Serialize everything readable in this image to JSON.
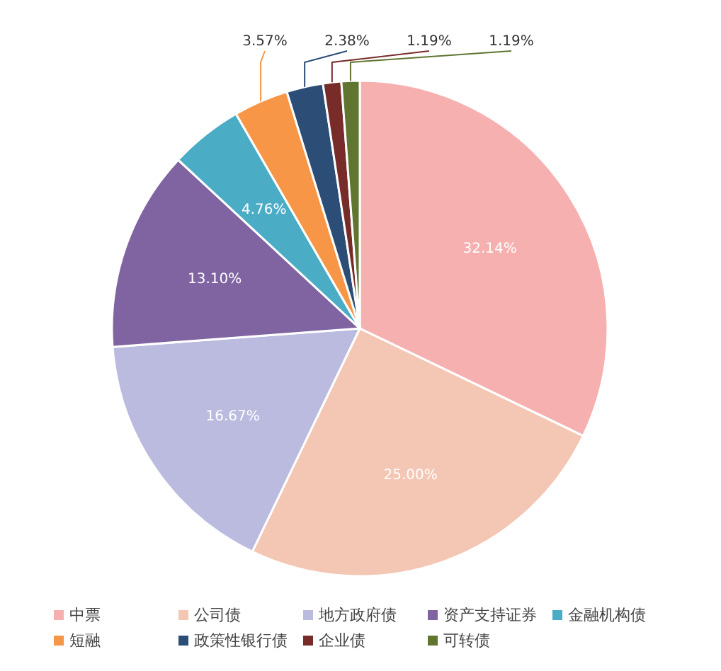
{
  "chart_data": {
    "type": "pie",
    "categories": [
      "中票",
      "公司债",
      "地方政府债",
      "资产支持证券",
      "金融机构债",
      "短融",
      "政策性银行债",
      "企业债",
      "可转债"
    ],
    "values": [
      32.14,
      25.0,
      16.67,
      13.1,
      4.76,
      3.57,
      2.38,
      1.19,
      1.19
    ],
    "colors": [
      "#f7b0b0",
      "#f4c6b4",
      "#babbdf",
      "#8064a2",
      "#4bacc6",
      "#f79646",
      "#2c4d75",
      "#772c2a",
      "#5f7530"
    ],
    "value_labels": [
      "32.14%",
      "25.00%",
      "16.67%",
      "13.10%",
      "4.76%",
      "3.57%",
      "2.38%",
      "1.19%",
      "1.19%"
    ],
    "legend": "bottom"
  }
}
